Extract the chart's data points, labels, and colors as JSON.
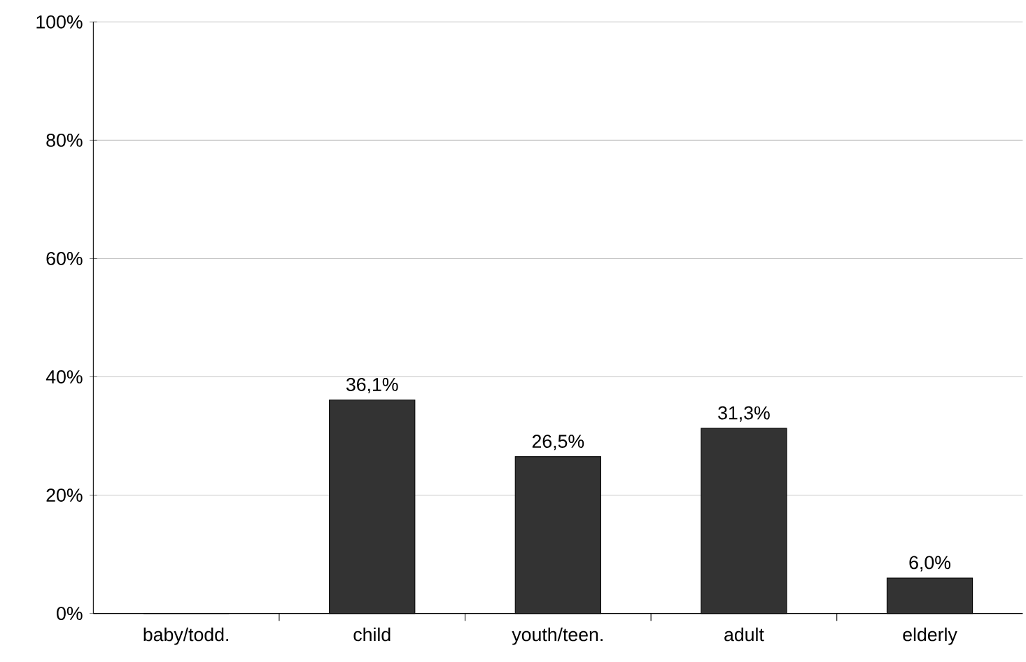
{
  "chart_data": {
    "type": "bar",
    "categories": [
      "baby/todd.",
      "child",
      "youth/teen.",
      "adult",
      "elderly"
    ],
    "values": [
      0,
      36.1,
      26.5,
      31.3,
      6.0
    ],
    "value_labels": [
      null,
      "36,1%",
      "26,5%",
      "31,3%",
      "6,0%"
    ],
    "color": "#333333",
    "ylim": [
      0,
      100
    ],
    "yticks": [
      {
        "value": 0,
        "label": "0%"
      },
      {
        "value": 20,
        "label": "20%"
      },
      {
        "value": 40,
        "label": "40%"
      },
      {
        "value": 60,
        "label": "60%"
      },
      {
        "value": 80,
        "label": "80%"
      },
      {
        "value": 100,
        "label": "100%"
      }
    ],
    "grid": "y"
  }
}
